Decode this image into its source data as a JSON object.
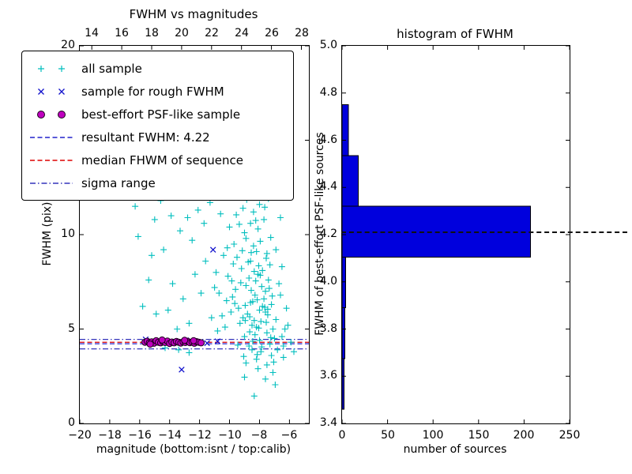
{
  "figure": {
    "background": "#ffffff"
  },
  "chart_data": [
    {
      "id": "fwhm_vs_magnitudes",
      "type": "scatter",
      "title": "FWHM vs magnitudes",
      "xlabel": "magnitude (bottom:isnt / top:calib)",
      "ylabel": "FWHM (pix)",
      "xlim": [
        -20,
        -4.7
      ],
      "ylim": [
        0,
        20
      ],
      "top_xlim": [
        13.2,
        28.5
      ],
      "x_ticks": [
        -20,
        -18,
        -16,
        -14,
        -12,
        -10,
        -8,
        -6
      ],
      "x_tick_labels": [
        "−20",
        "−18",
        "−16",
        "−14",
        "−12",
        "−10",
        "−8",
        "−6"
      ],
      "top_ticks": [
        14,
        16,
        18,
        20,
        22,
        24,
        26,
        28
      ],
      "top_tick_labels": [
        "14",
        "16",
        "18",
        "20",
        "22",
        "24",
        "26",
        "28"
      ],
      "y_ticks": [
        0,
        5,
        10,
        15,
        20
      ],
      "y_tick_labels": [
        "0",
        "5",
        "10",
        "15",
        "20"
      ],
      "grid": false,
      "hlines": [
        {
          "name": "resultant FWHM",
          "y": 4.22,
          "style": "dashed",
          "color": "#2222cc"
        },
        {
          "name": "median FHWM of sequence",
          "y": 4.3,
          "style": "dashed",
          "color": "#dd0000"
        },
        {
          "name": "sigma range upper",
          "y": 4.45,
          "style": "dashdot",
          "color": "#3333bb"
        },
        {
          "name": "sigma range lower",
          "y": 3.95,
          "style": "dashdot",
          "color": "#3333bb"
        }
      ],
      "series": [
        {
          "name": "all sample",
          "marker": "plus",
          "color": "#00bebe",
          "points": [
            [
              -8.2,
              5.1
            ],
            [
              -8.0,
              4.4
            ],
            [
              -7.8,
              6.2
            ],
            [
              -8.5,
              3.9
            ],
            [
              -9.1,
              5.6
            ],
            [
              -7.5,
              4.8
            ],
            [
              -8.9,
              7.3
            ],
            [
              -8.3,
              6.8
            ],
            [
              -7.2,
              3.6
            ],
            [
              -8.7,
              4.1
            ],
            [
              -9.4,
              6.1
            ],
            [
              -7.9,
              5.4
            ],
            [
              -8.1,
              7.9
            ],
            [
              -8.6,
              8.6
            ],
            [
              -7.6,
              5.9
            ],
            [
              -9.0,
              4.6
            ],
            [
              -8.4,
              9.4
            ],
            [
              -7.3,
              4.2
            ],
            [
              -8.8,
              5.8
            ],
            [
              -9.6,
              7.1
            ],
            [
              -7.7,
              6.6
            ],
            [
              -8.2,
              3.4
            ],
            [
              -9.2,
              8.2
            ],
            [
              -7.4,
              7.6
            ],
            [
              -8.0,
              6.0
            ],
            [
              -8.5,
              5.2
            ],
            [
              -9.8,
              6.7
            ],
            [
              -7.1,
              5.0
            ],
            [
              -8.3,
              4.7
            ],
            [
              -8.9,
              9.8
            ],
            [
              -7.8,
              8.1
            ],
            [
              -8.6,
              6.4
            ],
            [
              -9.3,
              5.3
            ],
            [
              -7.5,
              9.0
            ],
            [
              -8.1,
              10.3
            ],
            [
              -8.7,
              7.7
            ],
            [
              -7.9,
              3.8
            ],
            [
              -9.5,
              8.8
            ],
            [
              -7.2,
              6.3
            ],
            [
              -8.4,
              11.2
            ],
            [
              -9.0,
              10.1
            ],
            [
              -7.6,
              7.0
            ],
            [
              -8.8,
              12.1
            ],
            [
              -8.2,
              9.1
            ],
            [
              -7.3,
              8.4
            ],
            [
              -9.7,
              9.5
            ],
            [
              -8.0,
              11.6
            ],
            [
              -8.5,
              12.6
            ],
            [
              -7.7,
              10.8
            ],
            [
              -9.1,
              11.4
            ],
            [
              -8.3,
              12.9
            ],
            [
              -7.4,
              11.9
            ],
            [
              -8.9,
              3.2
            ],
            [
              -9.9,
              5.9
            ],
            [
              -7.0,
              4.5
            ],
            [
              -8.6,
              10.6
            ],
            [
              -9.4,
              12.3
            ],
            [
              -7.8,
              12.4
            ],
            [
              -8.1,
              2.9
            ],
            [
              -7.5,
              3.1
            ],
            [
              -10.2,
              6.5
            ],
            [
              -10.5,
              5.7
            ],
            [
              -10.1,
              7.8
            ],
            [
              -10.8,
              4.9
            ],
            [
              -10.4,
              8.9
            ],
            [
              -10.0,
              10.4
            ],
            [
              -10.7,
              6.9
            ],
            [
              -10.3,
              5.1
            ],
            [
              -10.9,
              8.0
            ],
            [
              -10.6,
              11.1
            ],
            [
              -6.8,
              3.9
            ],
            [
              -6.5,
              4.6
            ],
            [
              -6.9,
              5.5
            ],
            [
              -6.6,
              6.8
            ],
            [
              -6.4,
              3.5
            ],
            [
              -6.7,
              7.4
            ],
            [
              -6.3,
              5.0
            ],
            [
              -6.9,
              9.2
            ],
            [
              -6.5,
              8.3
            ],
            [
              -7.0,
              12.0
            ],
            [
              -6.6,
              10.9
            ],
            [
              -7.1,
              2.7
            ],
            [
              -6.4,
              4.1
            ],
            [
              -8.35,
              5.45
            ],
            [
              -8.15,
              6.55
            ],
            [
              -7.85,
              7.25
            ],
            [
              -8.55,
              7.05
            ],
            [
              -8.05,
              8.35
            ],
            [
              -8.75,
              8.55
            ],
            [
              -7.65,
              6.15
            ],
            [
              -9.25,
              7.45
            ],
            [
              -8.45,
              4.35
            ],
            [
              -7.95,
              9.65
            ],
            [
              -9.05,
              3.55
            ],
            [
              -8.65,
              5.65
            ],
            [
              -7.55,
              5.35
            ],
            [
              -8.25,
              10.75
            ],
            [
              -8.95,
              6.25
            ],
            [
              -7.45,
              6.05
            ],
            [
              -9.45,
              4.15
            ],
            [
              -8.05,
              5.05
            ],
            [
              -7.85,
              4.05
            ],
            [
              -8.55,
              9.05
            ],
            [
              -9.15,
              9.15
            ],
            [
              -7.25,
              9.85
            ],
            [
              -8.35,
              8.05
            ],
            [
              -7.65,
              11.45
            ],
            [
              -9.55,
              11.05
            ],
            [
              -8.15,
              3.65
            ],
            [
              -9.85,
              7.55
            ],
            [
              -7.35,
              7.15
            ],
            [
              -8.85,
              11.85
            ],
            [
              -9.65,
              6.35
            ],
            [
              -7.15,
              6.75
            ],
            [
              -8.45,
              6.45
            ],
            [
              -9.35,
              10.55
            ],
            [
              -7.95,
              7.85
            ],
            [
              -8.65,
              4.85
            ],
            [
              -7.55,
              8.75
            ],
            [
              -9.75,
              8.45
            ],
            [
              -8.25,
              7.55
            ],
            [
              -7.45,
              5.75
            ],
            [
              -8.95,
              5.45
            ],
            [
              -7.05,
              3.25
            ],
            [
              -6.2,
              6.1
            ],
            [
              -5.9,
              4.3
            ],
            [
              -6.1,
              5.2
            ],
            [
              -5.7,
              3.8
            ],
            [
              -7.25,
              4.55
            ],
            [
              -10.15,
              9.3
            ],
            [
              -10.45,
              12.0
            ],
            [
              -11.0,
              7.2
            ],
            [
              -11.2,
              5.6
            ],
            [
              -8.35,
              1.45
            ],
            [
              -6.95,
              2.05
            ],
            [
              -9.0,
              2.45
            ],
            [
              -7.6,
              2.35
            ],
            [
              -15.8,
              6.2
            ],
            [
              -15.2,
              8.9
            ],
            [
              -14.6,
              11.8
            ],
            [
              -14.2,
              12.6
            ],
            [
              -13.8,
              7.4
            ],
            [
              -13.3,
              10.2
            ],
            [
              -12.9,
              12.2
            ],
            [
              -12.5,
              9.7
            ],
            [
              -12.1,
              11.3
            ],
            [
              -15.5,
              12.1
            ],
            [
              -14.9,
              5.8
            ],
            [
              -13.1,
              6.6
            ],
            [
              -12.3,
              7.9
            ],
            [
              -11.7,
              10.6
            ],
            [
              -11.4,
              12.5
            ],
            [
              -15.0,
              10.8
            ],
            [
              -14.4,
              9.2
            ],
            [
              -13.6,
              12.7
            ],
            [
              -12.7,
              5.3
            ],
            [
              -11.9,
              6.9
            ],
            [
              -16.1,
              9.9
            ],
            [
              -13.9,
              11.0
            ],
            [
              -12.0,
              12.9
            ],
            [
              -14.1,
              6.0
            ],
            [
              -15.4,
              7.6
            ],
            [
              -11.6,
              8.6
            ],
            [
              -13.5,
              5.0
            ],
            [
              -16.3,
              11.5
            ],
            [
              -12.8,
              10.9
            ],
            [
              -11.3,
              11.7
            ],
            [
              -13.4,
              3.9
            ],
            [
              -12.7,
              3.75
            ],
            [
              -14.3,
              4.0
            ]
          ]
        },
        {
          "name": "sample for rough FWHM",
          "marker": "x",
          "color": "#1111cc",
          "points": [
            [
              -14.2,
              12.85
            ],
            [
              -12.65,
              13.1
            ],
            [
              -12.35,
              12.9
            ],
            [
              -11.1,
              9.2
            ],
            [
              -13.2,
              2.85
            ],
            [
              -15.6,
              4.45
            ],
            [
              -14.05,
              4.3
            ],
            [
              -12.9,
              4.4
            ],
            [
              -11.5,
              4.25
            ],
            [
              -10.8,
              4.35
            ],
            [
              -8.85,
              12.2
            ]
          ]
        },
        {
          "name": "best-effort PSF-like sample",
          "marker": "circle",
          "color": "#bf00bf",
          "edge": "#1a001a",
          "points": [
            [
              -15.65,
              4.3
            ],
            [
              -15.5,
              4.35
            ],
            [
              -15.35,
              4.28
            ],
            [
              -15.2,
              4.32
            ],
            [
              -15.05,
              4.25
            ],
            [
              -14.9,
              4.38
            ],
            [
              -14.75,
              4.3
            ],
            [
              -14.6,
              4.27
            ],
            [
              -14.45,
              4.33
            ],
            [
              -14.3,
              4.29
            ],
            [
              -14.15,
              4.36
            ],
            [
              -14.0,
              4.24
            ],
            [
              -13.85,
              4.31
            ],
            [
              -13.7,
              4.27
            ],
            [
              -13.55,
              4.34
            ],
            [
              -13.4,
              4.3
            ],
            [
              -13.25,
              4.26
            ],
            [
              -13.1,
              4.32
            ],
            [
              -12.95,
              4.29
            ],
            [
              -12.8,
              4.35
            ],
            [
              -12.65,
              4.28
            ],
            [
              -12.5,
              4.31
            ],
            [
              -12.35,
              4.25
            ],
            [
              -12.2,
              4.33
            ],
            [
              -12.05,
              4.3
            ],
            [
              -11.9,
              4.27
            ],
            [
              -13.0,
              4.4
            ],
            [
              -14.5,
              4.42
            ],
            [
              -15.3,
              4.2
            ],
            [
              -12.4,
              4.38
            ]
          ]
        }
      ]
    },
    {
      "id": "histogram_of_fwhm",
      "type": "barh",
      "title": "histogram of FWHM",
      "xlabel": "number of sources",
      "ylabel": "FWHM of best-effort PSF-like sources",
      "xlim": [
        0,
        250
      ],
      "ylim": [
        3.4,
        5.0
      ],
      "x_ticks": [
        0,
        50,
        100,
        150,
        200,
        250
      ],
      "x_tick_labels": [
        "0",
        "50",
        "100",
        "150",
        "200",
        "250"
      ],
      "y_ticks": [
        3.4,
        3.6,
        3.8,
        4.0,
        4.2,
        4.4,
        4.6,
        4.8,
        5.0
      ],
      "y_tick_labels": [
        "3.4",
        "3.6",
        "3.8",
        "4.0",
        "4.2",
        "4.4",
        "4.6",
        "4.8",
        "5.0"
      ],
      "bin_edges": [
        3.46,
        3.675,
        3.89,
        4.105,
        4.32,
        4.535,
        4.75
      ],
      "counts": [
        2,
        3,
        4,
        207,
        18,
        7
      ],
      "bar_color": "#0000dd",
      "bar_edge_color": "#000000",
      "dashed_line_y": 4.21,
      "dashed_line_color": "#111111"
    }
  ],
  "legend": {
    "entries": [
      {
        "label": "all sample",
        "type": "marker",
        "marker": "plus",
        "color": "#00bebe"
      },
      {
        "label": "sample for rough FWHM",
        "type": "marker",
        "marker": "x",
        "color": "#1111cc"
      },
      {
        "label": "best-effort PSF-like sample",
        "type": "marker",
        "marker": "circle",
        "color": "#bf00bf",
        "edge": "#1a001a"
      },
      {
        "label": "resultant FWHM: 4.22",
        "type": "line",
        "dash": "dashed",
        "color": "#2222cc"
      },
      {
        "label": "median FHWM of sequence",
        "type": "line",
        "dash": "dashed",
        "color": "#dd0000"
      },
      {
        "label": "sigma range",
        "type": "line",
        "dash": "dashdot",
        "color": "#3333bb"
      }
    ]
  }
}
